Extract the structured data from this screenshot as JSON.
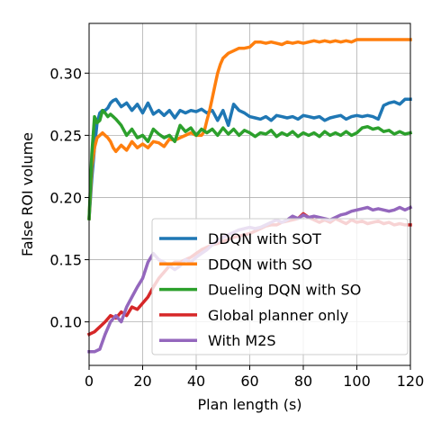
{
  "chart_data": {
    "type": "line",
    "title": "",
    "xlabel": "Plan length (s)",
    "ylabel": "False ROI volume",
    "xlim": [
      0,
      120
    ],
    "ylim": [
      0.065,
      0.34
    ],
    "xticks": [
      0,
      20,
      40,
      60,
      80,
      100,
      120
    ],
    "xtick_labels": [
      "0",
      "20",
      "40",
      "60",
      "80",
      "100",
      "120"
    ],
    "yticks": [
      0.1,
      0.15,
      0.2,
      0.25,
      0.3
    ],
    "ytick_labels": [
      "0.10",
      "0.15",
      "0.20",
      "0.25",
      "0.30"
    ],
    "grid": true,
    "legend_position": "lower-right",
    "series": [
      {
        "name": "DDQN with SOT",
        "color": "#1f77b4",
        "x": [
          0,
          1,
          2,
          3,
          4,
          5,
          6,
          7,
          8,
          9,
          10,
          12,
          14,
          16,
          18,
          20,
          22,
          24,
          26,
          28,
          30,
          32,
          34,
          36,
          38,
          40,
          42,
          44,
          46,
          48,
          50,
          52,
          54,
          56,
          58,
          60,
          62,
          64,
          66,
          68,
          70,
          72,
          74,
          76,
          78,
          80,
          82,
          84,
          86,
          88,
          90,
          92,
          94,
          96,
          98,
          100,
          102,
          104,
          106,
          108,
          110,
          112,
          114,
          116,
          118,
          120
        ],
        "y": [
          0.183,
          0.215,
          0.24,
          0.26,
          0.268,
          0.27,
          0.27,
          0.272,
          0.276,
          0.278,
          0.279,
          0.273,
          0.276,
          0.27,
          0.275,
          0.268,
          0.276,
          0.267,
          0.27,
          0.266,
          0.27,
          0.264,
          0.27,
          0.268,
          0.27,
          0.269,
          0.271,
          0.268,
          0.27,
          0.262,
          0.27,
          0.258,
          0.275,
          0.27,
          0.268,
          0.265,
          0.264,
          0.263,
          0.265,
          0.262,
          0.266,
          0.265,
          0.264,
          0.265,
          0.263,
          0.266,
          0.265,
          0.264,
          0.265,
          0.262,
          0.264,
          0.265,
          0.266,
          0.263,
          0.265,
          0.266,
          0.265,
          0.266,
          0.265,
          0.263,
          0.274,
          0.276,
          0.277,
          0.275,
          0.279,
          0.279
        ]
      },
      {
        "name": "DDQN with SO",
        "color": "#ff7f0e",
        "x": [
          0,
          1,
          2,
          3,
          4,
          5,
          6,
          7,
          8,
          9,
          10,
          12,
          14,
          16,
          18,
          20,
          22,
          24,
          26,
          28,
          30,
          32,
          34,
          36,
          38,
          40,
          41,
          42,
          43,
          44,
          45,
          46,
          47,
          48,
          49,
          50,
          52,
          54,
          56,
          58,
          60,
          62,
          64,
          66,
          68,
          70,
          72,
          74,
          76,
          78,
          80,
          82,
          84,
          86,
          88,
          90,
          92,
          94,
          96,
          98,
          100,
          102,
          104,
          106,
          108,
          110,
          112,
          114,
          116,
          118,
          120
        ],
        "y": [
          0.183,
          0.225,
          0.24,
          0.248,
          0.25,
          0.252,
          0.25,
          0.248,
          0.245,
          0.24,
          0.237,
          0.242,
          0.238,
          0.245,
          0.24,
          0.243,
          0.24,
          0.245,
          0.244,
          0.241,
          0.247,
          0.246,
          0.248,
          0.25,
          0.252,
          0.25,
          0.25,
          0.25,
          0.253,
          0.262,
          0.27,
          0.28,
          0.29,
          0.3,
          0.307,
          0.312,
          0.316,
          0.318,
          0.32,
          0.32,
          0.321,
          0.325,
          0.325,
          0.324,
          0.325,
          0.324,
          0.323,
          0.325,
          0.324,
          0.325,
          0.324,
          0.325,
          0.326,
          0.325,
          0.326,
          0.325,
          0.326,
          0.325,
          0.326,
          0.325,
          0.327,
          0.327,
          0.327,
          0.327,
          0.327,
          0.327,
          0.327,
          0.327,
          0.327,
          0.327,
          0.327
        ]
      },
      {
        "name": "Dueling DQN with SO",
        "color": "#2ca02c",
        "x": [
          0,
          1,
          2,
          3,
          4,
          5,
          6,
          7,
          8,
          9,
          10,
          12,
          14,
          16,
          18,
          20,
          22,
          24,
          26,
          28,
          30,
          32,
          34,
          36,
          38,
          40,
          42,
          44,
          46,
          48,
          50,
          52,
          54,
          56,
          58,
          60,
          62,
          64,
          66,
          68,
          70,
          72,
          74,
          76,
          78,
          80,
          82,
          84,
          86,
          88,
          90,
          92,
          94,
          96,
          98,
          100,
          102,
          104,
          106,
          108,
          110,
          112,
          114,
          116,
          118,
          120
        ],
        "y": [
          0.183,
          0.235,
          0.265,
          0.26,
          0.262,
          0.27,
          0.268,
          0.265,
          0.267,
          0.265,
          0.263,
          0.258,
          0.25,
          0.255,
          0.248,
          0.25,
          0.245,
          0.255,
          0.251,
          0.248,
          0.25,
          0.245,
          0.258,
          0.253,
          0.256,
          0.25,
          0.255,
          0.252,
          0.255,
          0.25,
          0.256,
          0.251,
          0.255,
          0.25,
          0.254,
          0.252,
          0.249,
          0.252,
          0.251,
          0.254,
          0.249,
          0.252,
          0.25,
          0.253,
          0.249,
          0.252,
          0.25,
          0.252,
          0.249,
          0.253,
          0.25,
          0.252,
          0.25,
          0.253,
          0.25,
          0.252,
          0.256,
          0.257,
          0.255,
          0.256,
          0.253,
          0.254,
          0.251,
          0.253,
          0.251,
          0.252
        ]
      },
      {
        "name": "Global planner only",
        "color": "#d62728",
        "x": [
          0,
          2,
          4,
          6,
          8,
          10,
          12,
          14,
          16,
          18,
          20,
          22,
          24,
          26,
          28,
          30,
          32,
          34,
          36,
          38,
          40,
          42,
          44,
          46,
          48,
          50,
          52,
          54,
          56,
          58,
          60,
          62,
          64,
          66,
          68,
          70,
          72,
          74,
          76,
          78,
          80,
          82,
          84,
          86,
          88,
          90,
          92,
          94,
          96,
          98,
          100,
          102,
          104,
          106,
          108,
          110,
          112,
          114,
          116,
          118,
          120
        ],
        "y": [
          0.09,
          0.092,
          0.096,
          0.1,
          0.105,
          0.103,
          0.108,
          0.105,
          0.112,
          0.11,
          0.115,
          0.12,
          0.128,
          0.135,
          0.14,
          0.145,
          0.148,
          0.148,
          0.15,
          0.152,
          0.155,
          0.158,
          0.16,
          0.162,
          0.163,
          0.165,
          0.166,
          0.168,
          0.169,
          0.17,
          0.171,
          0.173,
          0.175,
          0.177,
          0.178,
          0.178,
          0.18,
          0.181,
          0.182,
          0.183,
          0.187,
          0.184,
          0.182,
          0.18,
          0.182,
          0.18,
          0.183,
          0.181,
          0.179,
          0.182,
          0.18,
          0.181,
          0.179,
          0.18,
          0.181,
          0.179,
          0.18,
          0.178,
          0.179,
          0.178,
          0.178
        ]
      },
      {
        "name": "With M2S",
        "color": "#9467bd",
        "x": [
          0,
          2,
          4,
          6,
          8,
          10,
          12,
          14,
          16,
          18,
          20,
          22,
          24,
          26,
          28,
          30,
          32,
          34,
          36,
          38,
          40,
          42,
          44,
          46,
          48,
          50,
          52,
          54,
          56,
          58,
          60,
          62,
          64,
          66,
          68,
          70,
          72,
          74,
          76,
          78,
          80,
          82,
          84,
          86,
          88,
          90,
          92,
          94,
          96,
          98,
          100,
          102,
          104,
          106,
          108,
          110,
          112,
          114,
          116,
          118,
          120
        ],
        "y": [
          0.076,
          0.076,
          0.078,
          0.09,
          0.1,
          0.105,
          0.1,
          0.112,
          0.12,
          0.128,
          0.135,
          0.148,
          0.155,
          0.15,
          0.148,
          0.145,
          0.142,
          0.145,
          0.15,
          0.148,
          0.152,
          0.155,
          0.158,
          0.162,
          0.165,
          0.168,
          0.17,
          0.172,
          0.174,
          0.175,
          0.176,
          0.175,
          0.176,
          0.178,
          0.18,
          0.182,
          0.18,
          0.182,
          0.185,
          0.183,
          0.186,
          0.184,
          0.185,
          0.184,
          0.183,
          0.182,
          0.184,
          0.186,
          0.187,
          0.189,
          0.19,
          0.191,
          0.192,
          0.19,
          0.191,
          0.19,
          0.189,
          0.19,
          0.192,
          0.19,
          0.192
        ]
      }
    ]
  }
}
